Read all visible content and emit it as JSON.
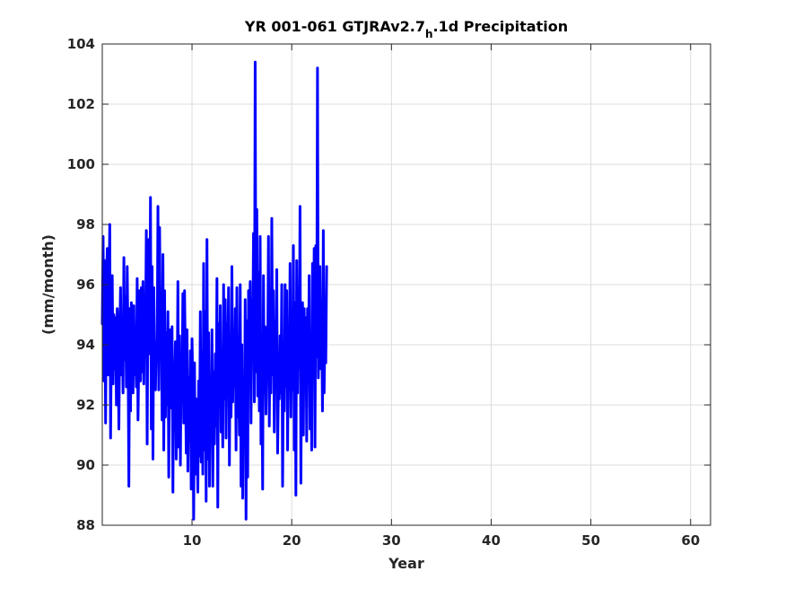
{
  "chart_data": {
    "type": "line",
    "title_parts": {
      "before": "YR 001-061 GTJRAv2.7",
      "subscript": "h",
      "after": ".1d Precipitation"
    },
    "xlabel": "Year",
    "ylabel": "(mm/month)",
    "xlim": [
      1,
      62
    ],
    "ylim": [
      88,
      104
    ],
    "xticks": [
      10,
      20,
      30,
      40,
      50,
      60
    ],
    "yticks": [
      88,
      90,
      92,
      94,
      96,
      98,
      100,
      102,
      104
    ],
    "grid": true,
    "series": [
      {
        "color": "#0000ff",
        "x_start": 1,
        "x_step": 0.0833333,
        "values": [
          94.7,
          97.6,
          92.8,
          96.8,
          91.4,
          96.0,
          97.2,
          93.0,
          95.6,
          98.0,
          90.9,
          94.4,
          96.3,
          92.7,
          95.0,
          93.2,
          94.9,
          92.0,
          95.2,
          93.9,
          91.2,
          94.4,
          95.9,
          93.0,
          94.5,
          92.4,
          96.9,
          93.5,
          95.6,
          92.6,
          96.6,
          94.0,
          89.3,
          95.2,
          91.8,
          95.4,
          93.6,
          92.4,
          95.3,
          93.0,
          94.2,
          92.6,
          96.2,
          91.5,
          93.6,
          95.8,
          92.8,
          95.9,
          93.1,
          96.1,
          92.7,
          95.5,
          94.2,
          97.8,
          90.7,
          95.4,
          97.5,
          93.7,
          98.9,
          91.2,
          96.6,
          90.2,
          95.9,
          93.5,
          92.5,
          94.1,
          93.6,
          98.6,
          92.5,
          97.9,
          93.7,
          95.1,
          91.5,
          97.0,
          90.5,
          95.8,
          91.6,
          94.4,
          92.0,
          95.1,
          89.6,
          93.8,
          94.5,
          91.9,
          94.6,
          89.1,
          93.3,
          92.8,
          94.1,
          90.2,
          92.2,
          96.1,
          90.6,
          94.3,
          90.0,
          93.6,
          92.5,
          95.7,
          91.4,
          95.8,
          93.5,
          90.4,
          94.5,
          89.8,
          92.9,
          90.8,
          93.8,
          89.2,
          94.2,
          92.6,
          88.2,
          93.4,
          89.7,
          92.2,
          91.1,
          89.1,
          92.8,
          90.3,
          95.1,
          90.1,
          93.8,
          89.7,
          96.7,
          90.5,
          95.1,
          88.8,
          97.5,
          90.2,
          94.4,
          89.3,
          92.5,
          91.1,
          94.5,
          89.3,
          93.1,
          90.7,
          93.7,
          91.3,
          96.2,
          88.6,
          94.7,
          92.1,
          95.3,
          91.1,
          93.4,
          90.6,
          96.0,
          92.2,
          95.5,
          90.9,
          94.7,
          93.6,
          95.9,
          90.0,
          94.3,
          91.6,
          96.6,
          92.1,
          94.5,
          92.6,
          95.2,
          90.5,
          95.9,
          91.6,
          93.3,
          91.0,
          96.0,
          89.3,
          94.0,
          88.9,
          92.8,
          90.7,
          95.5,
          88.2,
          94.8,
          89.6,
          95.8,
          92.7,
          96.1,
          91.4,
          95.5,
          93.8,
          97.7,
          92.1,
          103.4,
          93.1,
          98.5,
          92.3,
          96.4,
          91.8,
          97.6,
          90.7,
          93.7,
          89.2,
          96.3,
          92.4,
          94.6,
          91.7,
          93.9,
          93.4,
          97.6,
          91.3,
          94.9,
          92.4,
          98.2,
          93.0,
          95.8,
          91.1,
          94.8,
          92.7,
          96.5,
          90.4,
          92.6,
          92.2,
          94.3,
          92.4,
          96.0,
          89.3,
          93.1,
          91.8,
          96.0,
          92.6,
          95.8,
          90.5,
          94.1,
          92.9,
          96.7,
          91.6,
          94.8,
          92.5,
          97.3,
          90.5,
          95.4,
          89.0,
          96.8,
          92.4,
          95.4,
          93.2,
          98.6,
          89.4,
          93.6,
          95.4,
          91.0,
          95.2,
          92.9,
          94.9,
          90.8,
          95.2,
          93.0,
          96.3,
          91.2,
          94.4,
          90.5,
          96.7,
          92.9,
          97.2,
          90.6,
          97.3,
          93.6,
          103.2,
          92.9,
          94.6,
          96.6,
          93.2,
          95.1,
          91.8,
          97.8,
          92.4,
          94.6,
          93.4,
          96.6
        ]
      }
    ]
  }
}
